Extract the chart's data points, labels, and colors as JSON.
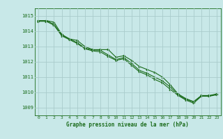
{
  "xlabel": "Graphe pression niveau de la mer (hPa)",
  "ylim": [
    1008.5,
    1015.5
  ],
  "xlim": [
    -0.5,
    23.5
  ],
  "yticks": [
    1009,
    1010,
    1011,
    1012,
    1013,
    1014,
    1015
  ],
  "xtick_labels": [
    "0",
    "1",
    "2",
    "3",
    "4",
    "5",
    "6",
    "7",
    "8",
    "9",
    "10",
    "11",
    "12",
    "13",
    "14",
    "15",
    "16",
    "17",
    "18",
    "19",
    "20",
    "21",
    "22",
    "23"
  ],
  "line_color": "#1a6b1a",
  "bg_color": "#c8e8e8",
  "grid_color": "#aacccc",
  "series1": [
    1014.7,
    1014.7,
    1014.6,
    1013.8,
    1013.5,
    1013.4,
    1013.0,
    1012.8,
    1012.8,
    1012.8,
    1012.3,
    1012.4,
    1012.1,
    1011.7,
    1011.5,
    1011.3,
    1011.0,
    1010.5,
    1009.9,
    1009.6,
    1009.4,
    1009.8,
    1009.8,
    1009.9
  ],
  "series2": [
    1014.7,
    1014.7,
    1014.45,
    1013.75,
    1013.5,
    1013.25,
    1012.9,
    1012.78,
    1012.75,
    1012.45,
    1012.15,
    1012.28,
    1011.9,
    1011.45,
    1011.25,
    1011.0,
    1010.75,
    1010.35,
    1009.85,
    1009.55,
    1009.38,
    1009.78,
    1009.78,
    1009.88
  ],
  "series3": [
    1014.65,
    1014.65,
    1014.4,
    1013.7,
    1013.45,
    1013.2,
    1012.85,
    1012.72,
    1012.65,
    1012.35,
    1012.1,
    1012.2,
    1011.78,
    1011.35,
    1011.15,
    1010.85,
    1010.62,
    1010.2,
    1009.8,
    1009.5,
    1009.3,
    1009.75,
    1009.75,
    1009.85
  ]
}
